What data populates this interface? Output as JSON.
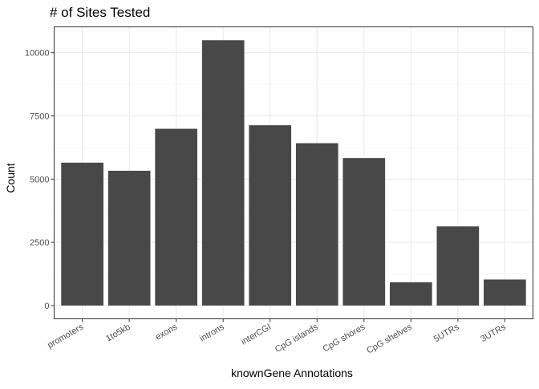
{
  "chart_data": {
    "type": "bar",
    "title": "# of Sites Tested",
    "xlabel": "knownGene Annotations",
    "ylabel": "Count",
    "categories": [
      "promoters",
      "1to5kb",
      "exons",
      "introns",
      "interCGI",
      "CpG islands",
      "CpG shores",
      "CpG shelves",
      "5UTRs",
      "3UTRs"
    ],
    "values": [
      5650,
      5330,
      6990,
      10490,
      7130,
      6420,
      5830,
      920,
      3130,
      1030
    ],
    "ylim": [
      -525,
      11020
    ],
    "yticks": [
      0,
      2500,
      5000,
      7500,
      10000
    ],
    "ytick_labels": [
      "0",
      "2500",
      "5000",
      "7500",
      "10000"
    ],
    "grid": true,
    "legend": "none",
    "bar_color": "#484848"
  }
}
